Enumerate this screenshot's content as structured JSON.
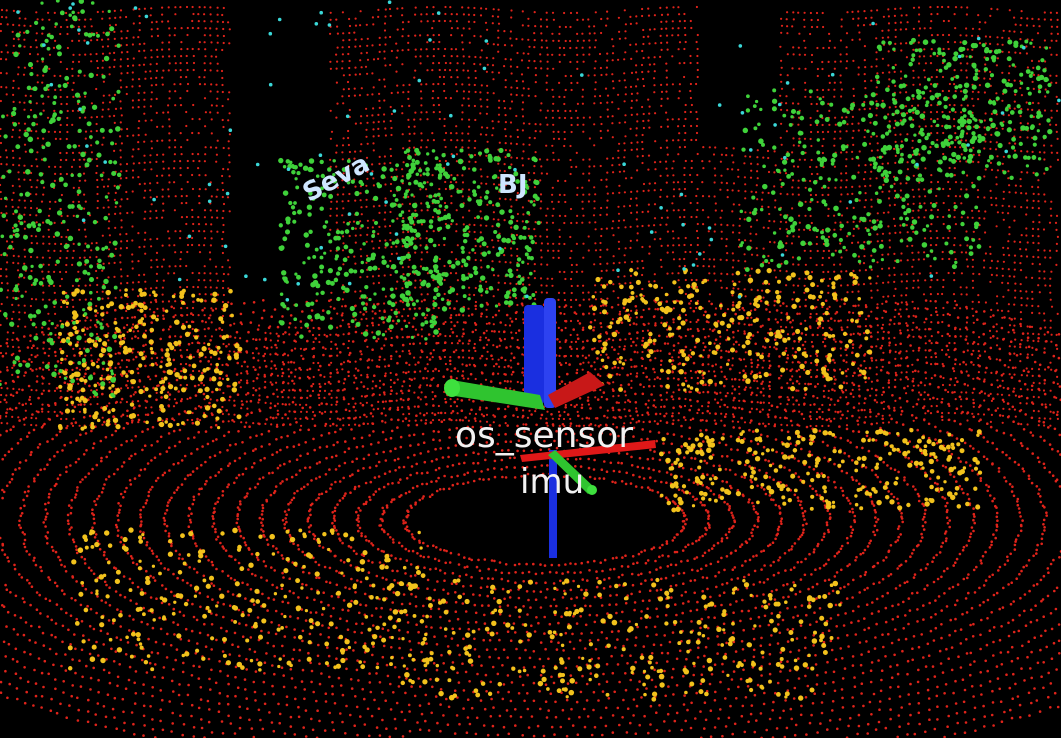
{
  "scene": {
    "frames": {
      "sensor_frame": "os_sensor",
      "imu_frame": "imu"
    },
    "people": {
      "person_a": "Seva",
      "person_b": "BJ"
    },
    "colors": {
      "background": "#000000",
      "ground_points": "#e0231a",
      "mid_points": "#f2c21c",
      "high_points": "#3fd23a",
      "top_points": "#3ad8d8",
      "axis_x": "#e01818",
      "axis_y": "#2fc42f",
      "axis_z": "#1a2fe0"
    },
    "axis_icon_names": [
      "x-axis-arrow",
      "y-axis-arrow",
      "z-axis-arrow"
    ]
  }
}
